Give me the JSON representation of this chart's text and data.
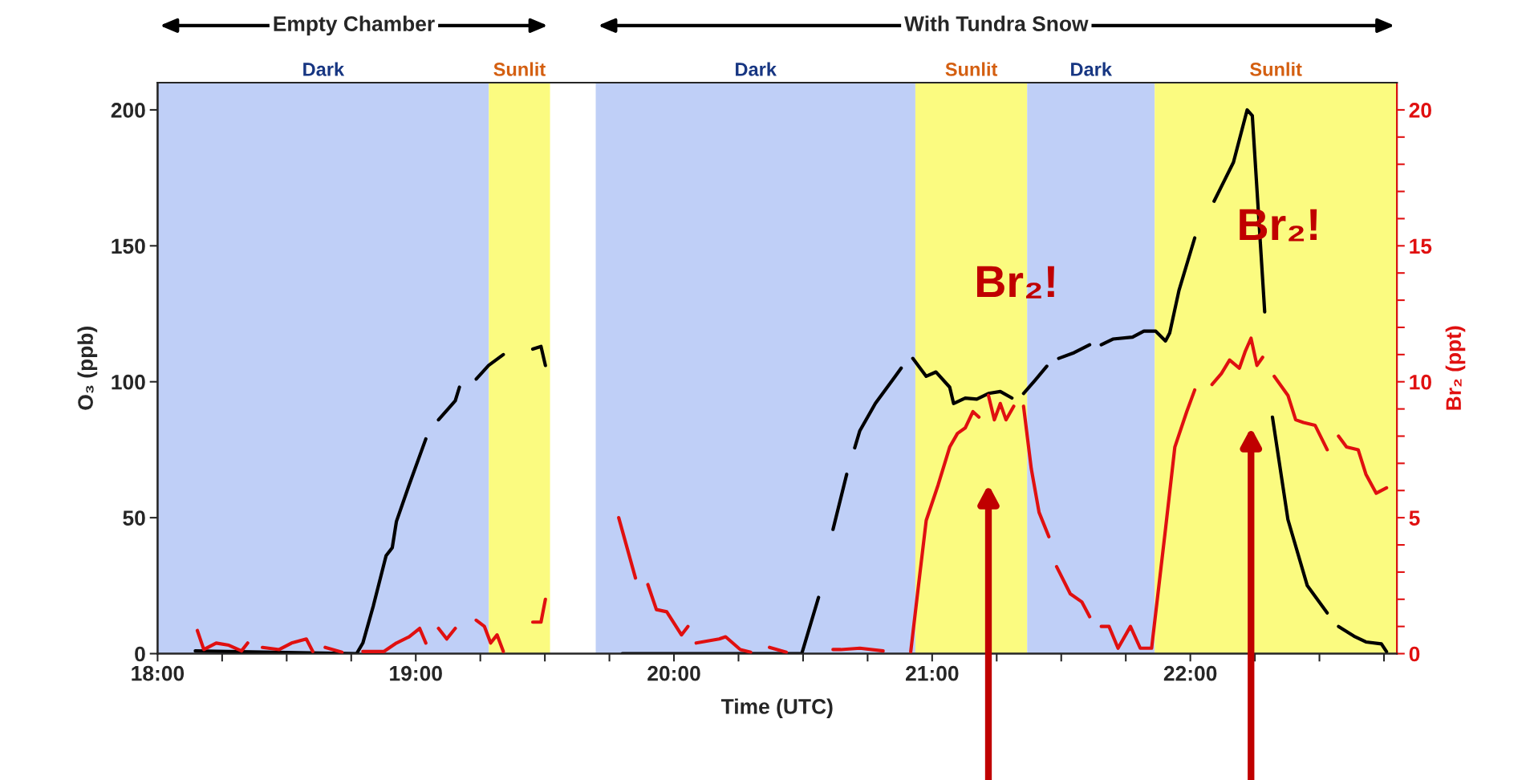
{
  "chart_data": {
    "type": "line",
    "xlabel": "Time (UTC)",
    "ylabel": "O₃ (ppb)",
    "y2label": "Br₂ (ppt)",
    "xlim": [
      18,
      22.8
    ],
    "ylim": [
      0,
      210
    ],
    "y2lim": [
      0,
      21
    ],
    "xticks": [
      {
        "value": 18,
        "label": "18:00"
      },
      {
        "value": 18.25,
        "label": null
      },
      {
        "value": 18.5,
        "label": null
      },
      {
        "value": 18.75,
        "label": null
      },
      {
        "value": 19,
        "label": "19:00"
      },
      {
        "value": 19.25,
        "label": null
      },
      {
        "value": 19.5,
        "label": null
      },
      {
        "value": 19.75,
        "label": null
      },
      {
        "value": 20,
        "label": "20:00"
      },
      {
        "value": 20.25,
        "label": null
      },
      {
        "value": 20.5,
        "label": null
      },
      {
        "value": 20.75,
        "label": null
      },
      {
        "value": 21,
        "label": "21:00"
      },
      {
        "value": 21.25,
        "label": null
      },
      {
        "value": 21.5,
        "label": null
      },
      {
        "value": 21.75,
        "label": null
      },
      {
        "value": 22,
        "label": "22:00"
      },
      {
        "value": 22.25,
        "label": null
      },
      {
        "value": 22.5,
        "label": null
      },
      {
        "value": 22.75,
        "label": null
      }
    ],
    "yticks": [
      0,
      50,
      100,
      150,
      200
    ],
    "y2ticks": [
      0,
      {
        "value": 1,
        "label": null
      },
      {
        "value": 2,
        "label": null
      },
      {
        "value": 3,
        "label": null
      },
      {
        "value": 4,
        "label": null
      },
      5,
      {
        "value": 6,
        "label": null
      },
      {
        "value": 7,
        "label": null
      },
      {
        "value": 8,
        "label": null
      },
      {
        "value": 9,
        "label": null
      },
      10,
      {
        "value": 11,
        "label": null
      },
      {
        "value": 12,
        "label": null
      },
      {
        "value": 13,
        "label": null
      },
      {
        "value": 14,
        "label": null
      },
      15,
      {
        "value": 16,
        "label": null
      },
      {
        "value": 17,
        "label": null
      },
      {
        "value": 18,
        "label": null
      },
      {
        "value": 19,
        "label": null
      },
      20
    ],
    "grid": false,
    "legend": false,
    "marker": "none",
    "line_style": "solid",
    "bands": [
      {
        "axis": "x",
        "from": 18,
        "to": 19.283,
        "label": "Dark",
        "color": "#bfcff7"
      },
      {
        "axis": "x",
        "from": 19.283,
        "to": 19.52,
        "label": "Sunlit",
        "color": "#fbfb80"
      },
      {
        "axis": "x",
        "from": 19.697,
        "to": 20.935,
        "label": "Dark",
        "color": "#bfcff7"
      },
      {
        "axis": "x",
        "from": 20.935,
        "to": 21.368,
        "label": "Sunlit",
        "color": "#fbfb80"
      },
      {
        "axis": "x",
        "from": 21.368,
        "to": 21.862,
        "label": "Dark",
        "color": "#bfcff7"
      },
      {
        "axis": "x",
        "from": 21.862,
        "to": 22.8,
        "label": "Sunlit",
        "color": "#fbfb80"
      }
    ],
    "annotations": [
      "Empty Chamber",
      "With Tundra Snow",
      "Br₂!",
      "Br₂!"
    ],
    "series": [
      {
        "color": "#000000",
        "x": [
          18.146,
          18.771,
          18.795,
          18.836,
          18.885,
          18.909,
          18.925,
          18.974,
          19.039,
          19.06,
          19.088,
          19.153,
          19.169,
          19.2,
          19.234,
          19.282,
          19.339,
          19.4,
          19.453,
          19.485,
          19.502,
          19.65,
          19.8,
          20.0,
          20.2,
          20.48,
          20.495,
          20.56,
          20.59,
          20.616,
          20.669,
          20.685,
          20.7,
          20.72,
          20.78,
          20.857,
          20.88,
          20.9,
          20.925,
          20.977,
          21.015,
          21.068,
          21.083,
          21.128,
          21.173,
          21.218,
          21.264,
          21.309,
          21.33,
          21.354,
          21.4,
          21.444,
          21.47,
          21.49,
          21.55,
          21.61,
          21.63,
          21.655,
          21.7,
          21.776,
          21.82,
          21.866,
          21.904,
          21.92,
          21.956,
          22.017,
          22.05,
          22.092,
          22.167,
          22.22,
          22.24,
          22.288,
          22.3,
          22.318,
          22.378,
          22.453,
          22.53,
          22.55,
          22.574,
          22.634,
          22.68,
          22.74,
          22.76
        ],
        "values": [
          1,
          0,
          3.9,
          17.7,
          36,
          39,
          48.6,
          62,
          79,
          null,
          86,
          93,
          98,
          null,
          101,
          106,
          110,
          null,
          112,
          113,
          106,
          null,
          0,
          0,
          0,
          0,
          0,
          20.7,
          null,
          45.7,
          66,
          null,
          75.7,
          82,
          92,
          102,
          105,
          null,
          108.6,
          102,
          103.6,
          98,
          92,
          94,
          93.6,
          95.7,
          96.4,
          94,
          null,
          95.7,
          100.7,
          105.7,
          null,
          108.6,
          110.7,
          113.6,
          null,
          113.6,
          115.7,
          116.4,
          118.6,
          118.6,
          115,
          117.9,
          133.6,
          152.9,
          null,
          166.4,
          180.7,
          200,
          197.9,
          125.7,
          null,
          87,
          49.3,
          25,
          15,
          null,
          10,
          6.4,
          4.3,
          3.6,
          0.7
        ]
      },
      {
        "color": "#e01010",
        "axis": "y2",
        "x": [
          18.154,
          18.179,
          18.227,
          18.276,
          18.325,
          18.349,
          18.38,
          18.406,
          18.471,
          18.519,
          18.576,
          18.601,
          18.625,
          18.649,
          18.714,
          18.75,
          18.795,
          18.877,
          18.925,
          18.974,
          19.015,
          19.039,
          19.06,
          19.088,
          19.12,
          19.153,
          19.2,
          19.234,
          19.266,
          19.29,
          19.315,
          19.339,
          19.4,
          19.453,
          19.485,
          19.502,
          19.65,
          19.786,
          19.851,
          19.875,
          19.899,
          19.932,
          19.972,
          20.029,
          20.054,
          20.07,
          20.086,
          20.175,
          20.2,
          20.257,
          20.297,
          20.33,
          20.37,
          20.435,
          20.5,
          20.616,
          20.646,
          20.72,
          20.81,
          20.86,
          20.917,
          20.947,
          20.977,
          21.023,
          21.068,
          21.098,
          21.128,
          21.158,
          21.181,
          21.2,
          21.218,
          21.241,
          21.264,
          21.286,
          21.316,
          21.335,
          21.354,
          21.384,
          21.414,
          21.452,
          21.467,
          21.482,
          21.535,
          21.58,
          21.61,
          21.63,
          21.655,
          21.685,
          21.72,
          21.768,
          21.806,
          21.85,
          21.904,
          21.94,
          21.986,
          22.017,
          22.05,
          22.084,
          22.12,
          22.152,
          22.19,
          22.212,
          22.235,
          22.258,
          22.28,
          22.3,
          22.325,
          22.378,
          22.408,
          22.438,
          22.483,
          22.53,
          22.55,
          22.574,
          22.605,
          22.65,
          22.68,
          22.72,
          22.76
        ],
        "values": [
          0.85,
          0.15,
          0.39,
          0.31,
          0.1,
          0.39,
          null,
          0.23,
          0.15,
          0.39,
          0.54,
          0.08,
          null,
          0.23,
          0.05,
          null,
          0.08,
          0.08,
          0.39,
          0.62,
          0.93,
          0.39,
          null,
          0.93,
          0.54,
          0.93,
          null,
          1.23,
          1.0,
          0.39,
          0.69,
          0.08,
          null,
          1.16,
          1.16,
          2.0,
          null,
          5.0,
          2.78,
          null,
          2.54,
          1.62,
          1.54,
          0.69,
          1.0,
          null,
          0.39,
          0.54,
          0.62,
          0.15,
          0.05,
          null,
          0.23,
          0.05,
          null,
          0.15,
          0.15,
          0.2,
          0.1,
          null,
          0.07,
          2.5,
          4.9,
          6.2,
          7.6,
          8.1,
          8.3,
          8.9,
          8.7,
          null,
          9.5,
          8.6,
          9.2,
          8.6,
          9.1,
          null,
          9.1,
          6.8,
          5.2,
          4.3,
          null,
          3.2,
          2.2,
          1.9,
          1.36,
          null,
          1.0,
          1.0,
          0.2,
          1.0,
          0.2,
          0.2,
          4.6,
          7.6,
          8.9,
          9.7,
          null,
          9.9,
          10.3,
          10.8,
          10.5,
          11.1,
          11.6,
          10.6,
          10.9,
          null,
          10.2,
          9.5,
          8.6,
          8.5,
          8.4,
          7.5,
          null,
          8.0,
          7.6,
          7.5,
          6.6,
          5.9,
          6.1
        ]
      }
    ]
  }
}
